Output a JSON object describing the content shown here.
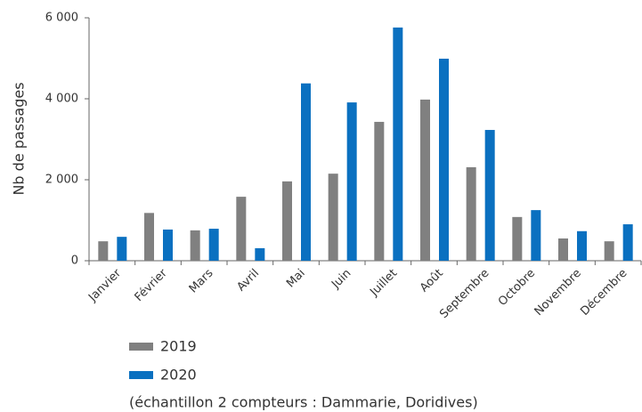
{
  "chart_data": {
    "type": "bar",
    "y_label": "Nb de passages",
    "note": "(échantillon 2 compteurs : Dammarie, Doridives)",
    "categories": [
      "Janvier",
      "Février",
      "Mars",
      "Avril",
      "Mai",
      "Juin",
      "Juillet",
      "Août",
      "Septembre",
      "Octobre",
      "Novembre",
      "Décembre"
    ],
    "series": [
      {
        "name": "2019",
        "color": "#808080",
        "values": [
          480,
          1180,
          750,
          1580,
          1960,
          2150,
          3430,
          3980,
          2310,
          1080,
          550,
          480
        ]
      },
      {
        "name": "2020",
        "color": "#0a70c0",
        "values": [
          590,
          770,
          790,
          310,
          4380,
          3910,
          5760,
          4990,
          3230,
          1250,
          730,
          900
        ]
      }
    ],
    "ylim": [
      0,
      6000
    ],
    "yticks": [
      0,
      {
        "value": 2000,
        "label": "2 000"
      },
      {
        "value": 4000,
        "label": "4 000"
      },
      {
        "value": 6000,
        "label": "6 000"
      }
    ],
    "legend": "bottom-left"
  }
}
